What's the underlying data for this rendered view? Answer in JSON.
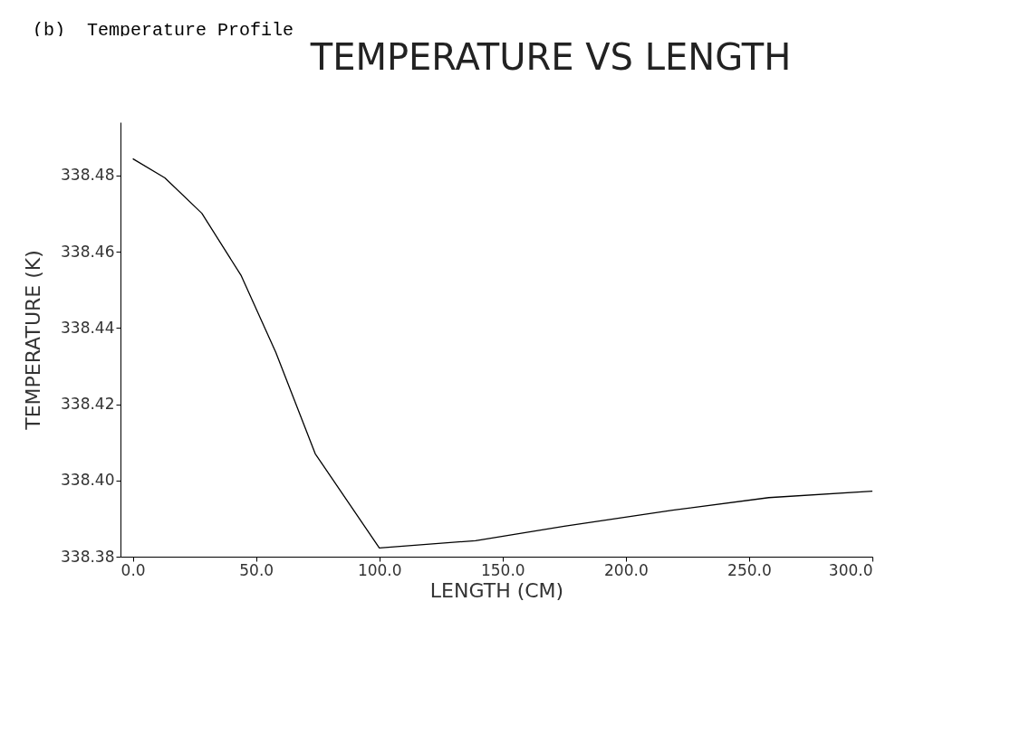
{
  "chart_data": {
    "type": "line",
    "title": "(b)  Temperature Profile",
    "subtitle": "TEMPERATURE VS LENGTH",
    "xlabel": "LENGTH (CM)",
    "ylabel": "TEMPERATURE (K)",
    "x": [
      0,
      13,
      28,
      44,
      58,
      74,
      100,
      139,
      175,
      219,
      258,
      300
    ],
    "series": [
      {
        "color": "#000000",
        "values": [
          338.4844,
          338.4794,
          338.4701,
          338.4537,
          338.4336,
          338.407,
          338.3823,
          338.3842,
          338.388,
          338.3922,
          338.3955,
          338.3972
        ]
      }
    ],
    "xlim": [
      -5,
      300
    ],
    "xticks": [
      {
        "value": 0,
        "label": "0.0"
      },
      {
        "value": 50,
        "label": "50.0"
      },
      {
        "value": 100,
        "label": "100.0"
      },
      {
        "value": 150,
        "label": "150.0"
      },
      {
        "value": 200,
        "label": "200.0"
      },
      {
        "value": 250,
        "label": "250.0"
      },
      {
        "value": 300,
        "label": "300.0"
      }
    ],
    "ylim": [
      338.38,
      338.494
    ],
    "yticks": [
      338.38,
      {
        "value": 338.4,
        "label": "338.40"
      },
      338.42,
      338.44,
      338.46,
      338.48
    ],
    "grid": false,
    "marker": "none",
    "line_style": "solid"
  }
}
